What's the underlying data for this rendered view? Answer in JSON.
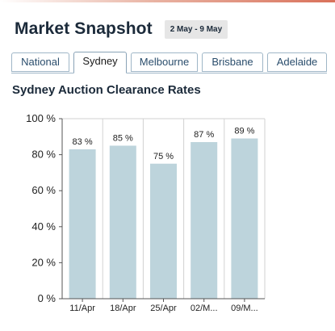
{
  "header": {
    "title": "Market Snapshot",
    "date_range": "2 May - 9 May"
  },
  "tabs": [
    {
      "label": "National",
      "active": false
    },
    {
      "label": "Sydney",
      "active": true
    },
    {
      "label": "Melbourne",
      "active": false
    },
    {
      "label": "Brisbane",
      "active": false
    },
    {
      "label": "Adelaide",
      "active": false
    }
  ],
  "colors": {
    "bar": "#bdd4dc",
    "title": "#1b2a3a",
    "tab_text": "#2a4d6c",
    "tab_border": "#9fb6c7"
  },
  "chart_data": {
    "type": "bar",
    "title": "Sydney Auction Clearance Rates",
    "xlabel": "",
    "ylabel": "",
    "categories": [
      "11/Apr",
      "18/Apr",
      "25/Apr",
      "02/M...",
      "09/M..."
    ],
    "values": [
      83,
      85,
      75,
      87,
      89
    ],
    "value_labels": [
      "83 %",
      "85 %",
      "75 %",
      "87 %",
      "89 %"
    ],
    "ylim": [
      0,
      100
    ],
    "yticks": [
      0,
      20,
      40,
      60,
      80,
      100
    ],
    "ytick_labels": [
      "0 %",
      "20 %",
      "40 %",
      "60 %",
      "80 %",
      "100 %"
    ],
    "grid": "vertical",
    "legend": "none"
  }
}
